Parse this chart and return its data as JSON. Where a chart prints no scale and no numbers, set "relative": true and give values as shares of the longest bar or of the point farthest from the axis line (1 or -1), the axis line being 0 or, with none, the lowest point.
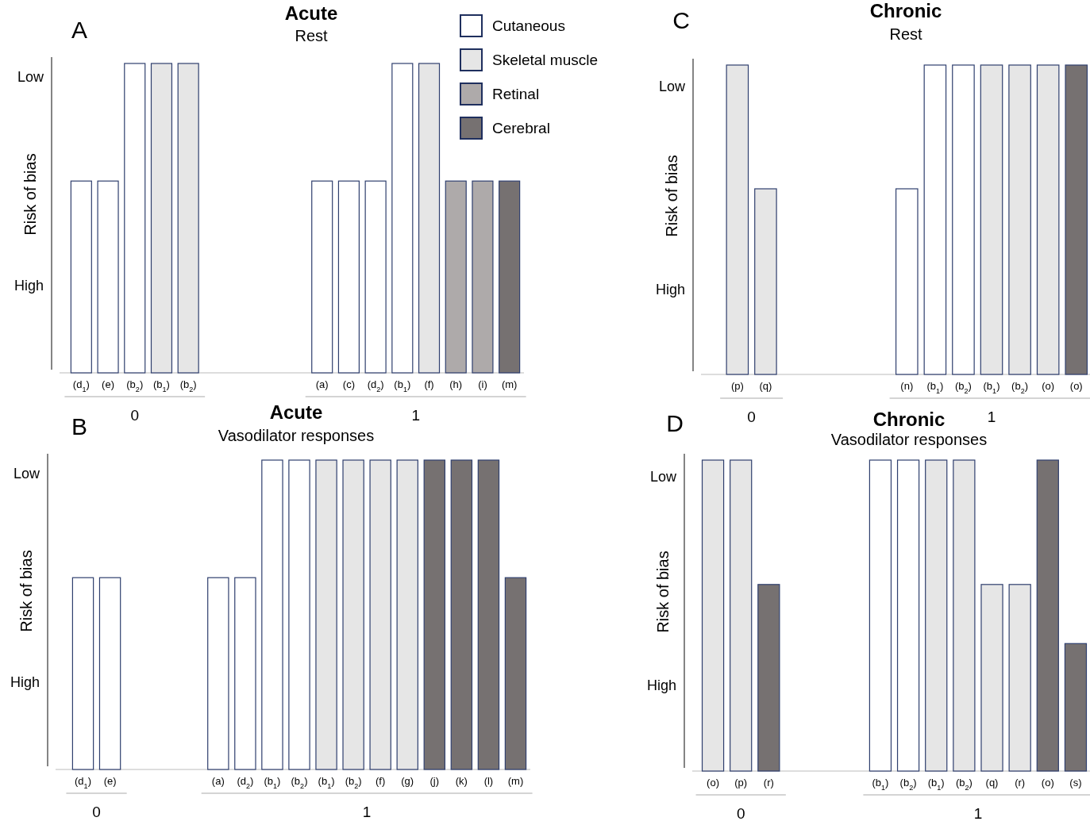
{
  "chart_data": [
    {
      "type": "bar",
      "relative": true,
      "title": "Acute",
      "subtitle": "Rest",
      "ylabel": "Risk of bias",
      "annotations": [
        "A",
        "Low",
        "High",
        "0",
        "1"
      ],
      "legend": "top right",
      "categories": [
        "(d$_{1}$)",
        "(e)",
        "(b$_{2}$)",
        "(b$_{1}$)",
        "(b$_{2}$)",
        null,
        null,
        null,
        null,
        "(a)",
        "(c)",
        "(d$_{2}$)",
        "(b$_{1}$)",
        "(f)",
        "(h)",
        "(i)",
        "(m)"
      ],
      "series": [
        {
          "name": "Cutaneous",
          "color": "#ffffff",
          "values": [
            0.62,
            0.62,
            1,
            null,
            null,
            null,
            null,
            null,
            null,
            0.62,
            0.62,
            0.62,
            1,
            null,
            null,
            null,
            null
          ]
        },
        {
          "name": "Skeletal muscle",
          "color": "#e6e6e6",
          "values": [
            null,
            null,
            null,
            1,
            1,
            null,
            null,
            null,
            null,
            null,
            null,
            null,
            null,
            1,
            null,
            null,
            null
          ]
        },
        {
          "name": "Retinal",
          "color": "#aeaaaa",
          "values": [
            null,
            null,
            null,
            null,
            null,
            null,
            null,
            null,
            null,
            null,
            null,
            null,
            null,
            null,
            0.62,
            0.62,
            null
          ]
        },
        {
          "name": "Cerebral",
          "color": "#767171",
          "values": [
            null,
            null,
            null,
            null,
            null,
            null,
            null,
            null,
            null,
            null,
            null,
            null,
            null,
            null,
            null,
            null,
            0.62
          ]
        }
      ]
    },
    {
      "type": "bar",
      "relative": true,
      "title": "Acute",
      "subtitle": "Vasodilator responses",
      "ylabel": "Risk of bias",
      "annotations": [
        "B",
        "Low",
        "High",
        "0",
        "1"
      ],
      "categories": [
        "(d$_{1}$)",
        "(e)",
        null,
        null,
        null,
        "(a)",
        "(d$_{2}$)",
        "(b$_{1}$)",
        "(b$_{2}$)",
        "(b$_{1}$)",
        "(b$_{2}$)",
        "(f)",
        "(g)",
        "(j)",
        "(k)",
        "(l)",
        "(m)"
      ],
      "series": [
        {
          "color": "#ffffff",
          "values": [
            0.62,
            0.62,
            null,
            null,
            null,
            0.62,
            0.62,
            1,
            1,
            null,
            null,
            null,
            null,
            null,
            null,
            null,
            null
          ]
        },
        {
          "color": "#e6e6e6",
          "values": [
            null,
            null,
            null,
            null,
            null,
            null,
            null,
            null,
            null,
            1,
            1,
            1,
            1,
            null,
            null,
            null,
            null
          ]
        },
        {
          "color": "#767171",
          "values": [
            null,
            null,
            null,
            null,
            null,
            null,
            null,
            null,
            null,
            null,
            null,
            null,
            null,
            1,
            1,
            1,
            0.62
          ]
        }
      ]
    },
    {
      "type": "bar",
      "relative": true,
      "title": "Chronic",
      "subtitle": "Rest",
      "ylabel": "Risk of bias",
      "annotations": [
        "C",
        "Low",
        "High",
        "0",
        "1"
      ],
      "categories": [
        null,
        "(p)",
        "(q)",
        null,
        null,
        null,
        null,
        "(n)",
        "(b$_{1}$)",
        "(b$_{2}$)",
        "(b$_{1}$)",
        "(b$_{2}$)",
        "(o)",
        "(o)"
      ],
      "series": [
        {
          "color": "#ffffff",
          "values": [
            null,
            null,
            null,
            null,
            null,
            null,
            null,
            0.6,
            1,
            1,
            null,
            null,
            null,
            null
          ]
        },
        {
          "color": "#e6e6e6",
          "values": [
            null,
            1,
            0.6,
            null,
            null,
            null,
            null,
            null,
            null,
            null,
            1,
            1,
            1,
            null
          ]
        },
        {
          "color": "#767171",
          "values": [
            null,
            null,
            null,
            null,
            null,
            null,
            null,
            null,
            null,
            null,
            null,
            null,
            null,
            1
          ]
        }
      ]
    },
    {
      "type": "bar",
      "relative": true,
      "title": "Chronic",
      "subtitle": "Vasodilator responses",
      "ylabel": "Risk of bias",
      "annotations": [
        "D",
        "Low",
        "High",
        "0",
        "1"
      ],
      "categories": [
        "(o)",
        "(p)",
        "(r)",
        null,
        null,
        null,
        "(b$_{1}$)",
        "(b$_{2}$)",
        "(b$_{1}$)",
        "(b$_{2}$)",
        "(q)",
        "(r)",
        "(o)",
        "(s)"
      ],
      "series": [
        {
          "color": "#ffffff",
          "values": [
            null,
            null,
            null,
            null,
            null,
            null,
            1,
            1,
            null,
            null,
            null,
            null,
            null,
            null
          ]
        },
        {
          "color": "#e6e6e6",
          "values": [
            1,
            1,
            null,
            null,
            null,
            null,
            null,
            null,
            1,
            1,
            0.6,
            0.6,
            null,
            null
          ]
        },
        {
          "color": "#767171",
          "values": [
            null,
            null,
            0.6,
            null,
            null,
            null,
            null,
            null,
            null,
            null,
            null,
            null,
            1,
            0.41
          ]
        }
      ]
    }
  ]
}
